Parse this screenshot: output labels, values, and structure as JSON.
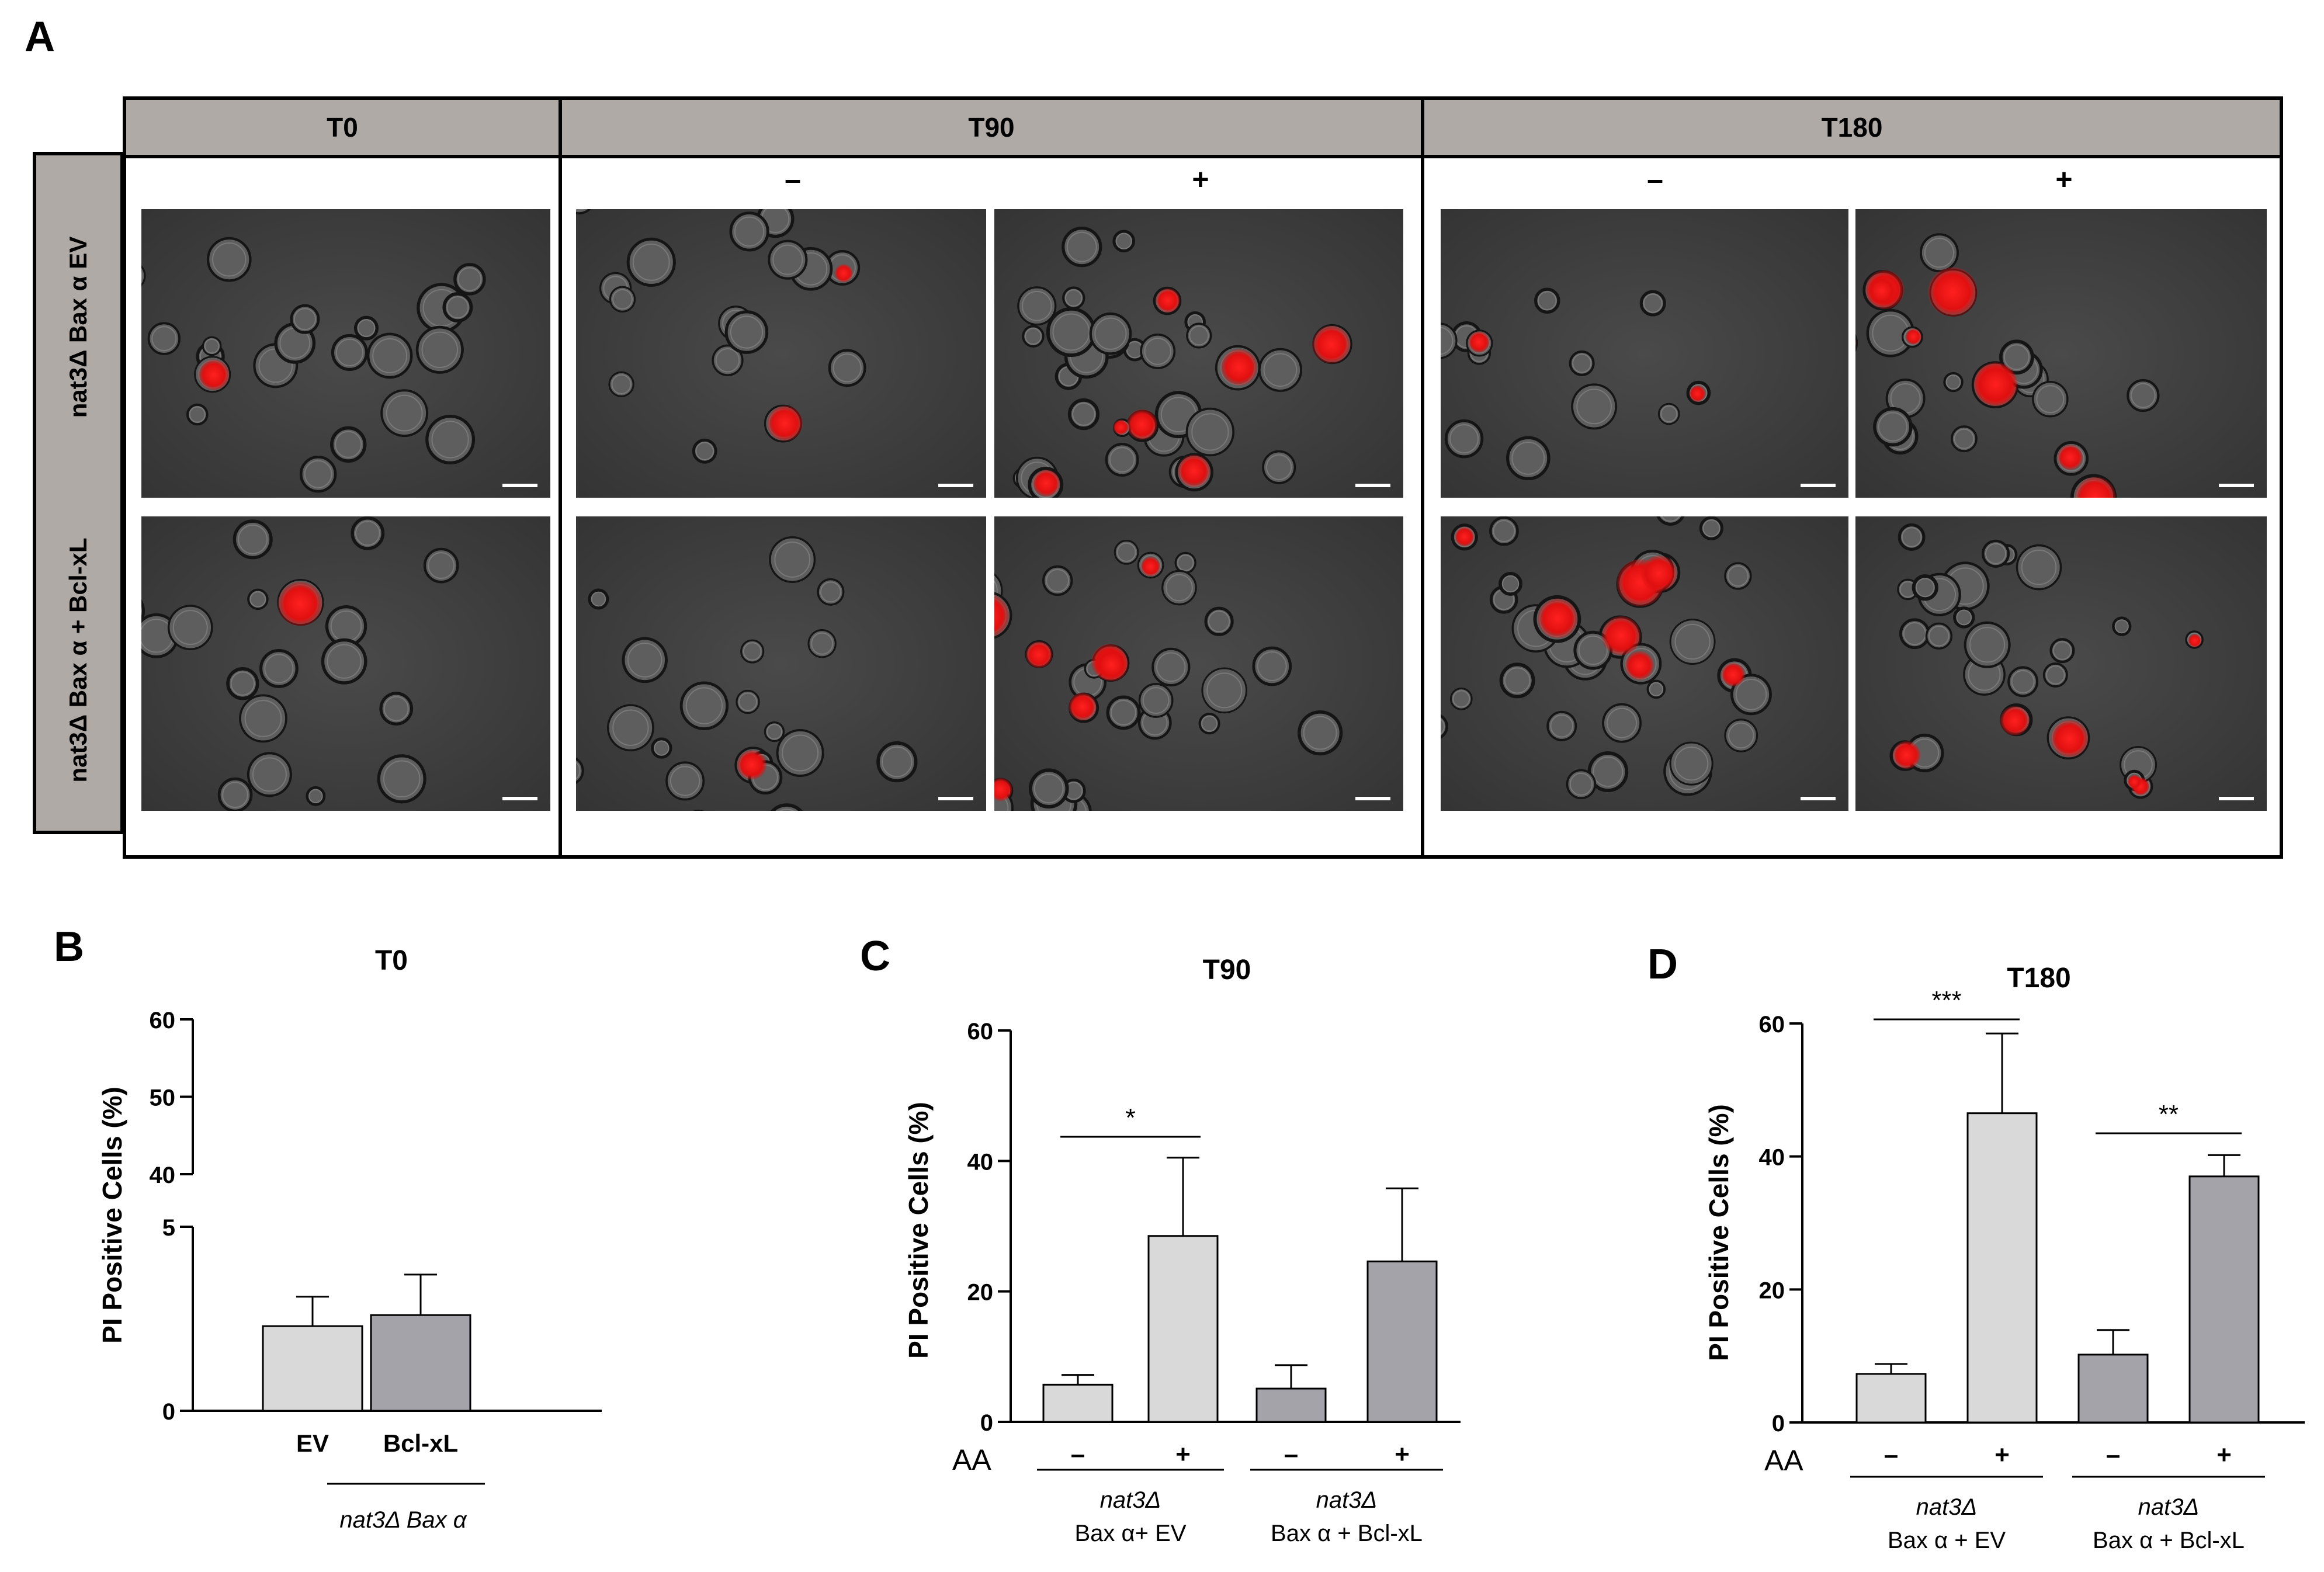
{
  "panelA": {
    "letter": "A",
    "columns": {
      "t0": "T0",
      "t90": "T90",
      "t180": "T180"
    },
    "signs": {
      "minus": "–",
      "plus": "+"
    },
    "rows": {
      "row1": "nat3Δ Bax α EV",
      "row2": "nat3Δ Bax α + Bcl-xL"
    }
  },
  "chart_data": [
    {
      "panel": "B",
      "type": "bar",
      "title": "T0",
      "ylabel": "PI Positive Cells (%)",
      "categories": [
        "EV",
        "Bcl-xL"
      ],
      "values": [
        2.3,
        2.6
      ],
      "errors": [
        0.8,
        1.1
      ],
      "colors": [
        "#d9d9d9",
        "#a3a3a9"
      ],
      "group_label": "nat3Δ Bax α",
      "ylim": [
        0,
        60
      ],
      "axis_break": [
        5,
        40
      ],
      "yticks": [
        0,
        5,
        40,
        50,
        60
      ]
    },
    {
      "panel": "C",
      "type": "bar",
      "title": "T90",
      "ylabel": "PI Positive Cells (%)",
      "categories": [
        "–",
        "+",
        "–",
        "+"
      ],
      "values": [
        5.7,
        28.5,
        5.1,
        24.6
      ],
      "errors": [
        1.5,
        12.0,
        3.6,
        11.2
      ],
      "colors": [
        "#d9d9d9",
        "#d9d9d9",
        "#a3a3a9",
        "#a3a3a9"
      ],
      "aa_label": "AA",
      "groups": [
        {
          "line1": "nat3Δ",
          "line2": "Bax α+ EV"
        },
        {
          "line1": "nat3Δ",
          "line2": "Bax α + Bcl-xL"
        }
      ],
      "significance": [
        {
          "between": [
            0,
            1
          ],
          "label": "*"
        }
      ],
      "ylim": [
        0,
        60
      ],
      "yticks": [
        0,
        20,
        40,
        60
      ]
    },
    {
      "panel": "D",
      "type": "bar",
      "title": "T180",
      "ylabel": "PI Positive Cells (%)",
      "categories": [
        "–",
        "+",
        "–",
        "+"
      ],
      "values": [
        7.3,
        46.5,
        10.2,
        37.0
      ],
      "errors": [
        1.5,
        12.0,
        3.7,
        3.2
      ],
      "colors": [
        "#d9d9d9",
        "#d9d9d9",
        "#a3a3a9",
        "#a3a3a9"
      ],
      "aa_label": "AA",
      "groups": [
        {
          "line1": "nat3Δ",
          "line2": "Bax α + EV"
        },
        {
          "line1": "nat3Δ",
          "line2": "Bax α + Bcl-xL"
        }
      ],
      "significance": [
        {
          "between": [
            0,
            1
          ],
          "label": "***"
        },
        {
          "between": [
            2,
            3
          ],
          "label": "**"
        }
      ],
      "ylim": [
        0,
        60
      ],
      "yticks": [
        0,
        20,
        40,
        60
      ]
    }
  ]
}
